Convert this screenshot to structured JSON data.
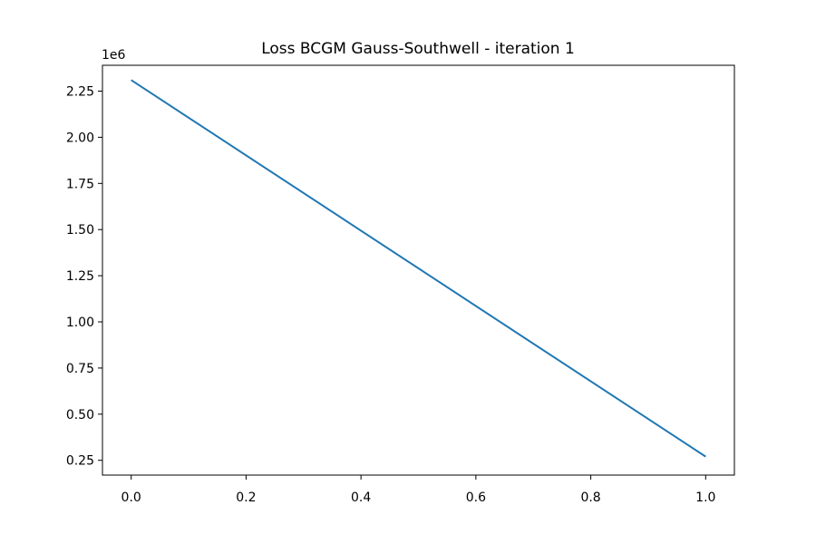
{
  "chart_data": {
    "type": "line",
    "title": "Loss BCGM Gauss-Southwell - iteration 1",
    "xlabel": "",
    "ylabel": "",
    "y_offset_label": "1e6",
    "x_ticks": [
      0.0,
      0.2,
      0.4,
      0.6,
      0.8,
      1.0
    ],
    "x_tick_labels": [
      "0.0",
      "0.2",
      "0.4",
      "0.6",
      "0.8",
      "1.0"
    ],
    "y_ticks": [
      0.25,
      0.5,
      0.75,
      1.0,
      1.25,
      1.5,
      1.75,
      2.0,
      2.25
    ],
    "y_tick_labels": [
      "0.25",
      "0.50",
      "0.75",
      "1.00",
      "1.25",
      "1.50",
      "1.75",
      "2.00",
      "2.25"
    ],
    "xlim": [
      -0.05,
      1.05
    ],
    "ylim": [
      0.17,
      2.39
    ],
    "grid": false,
    "series": [
      {
        "name": "loss",
        "color": "#1f77b4",
        "x": [
          0,
          1
        ],
        "y": [
          2.31,
          0.27
        ]
      }
    ]
  }
}
